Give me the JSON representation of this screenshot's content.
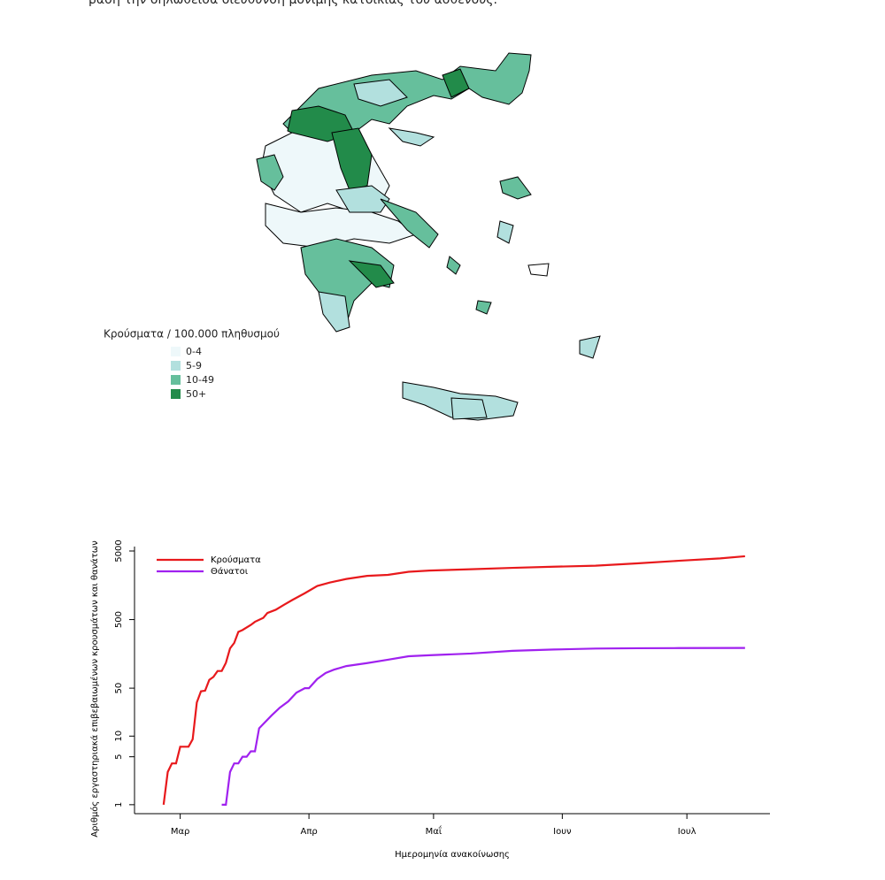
{
  "header": {
    "text": "βάση την δηλωθείσα διεύθυνση μόνιμης κατοικίας του ασθενούς."
  },
  "map": {
    "legend": {
      "title": "Κρούσματα / 100.000 πληθυσμού",
      "items": [
        {
          "label": "0-4",
          "color": "#eef8fa"
        },
        {
          "label": "5-9",
          "color": "#b2e0de"
        },
        {
          "label": "10-49",
          "color": "#66bf9c"
        },
        {
          "label": "50+",
          "color": "#228b4a"
        }
      ]
    }
  },
  "chart_data": {
    "type": "line",
    "ylabel": "Αριθμός εργαστηριακά επιβεβαιωμένων κρουσμάτων και θανάτων",
    "xlabel": "Ημερομηνία ανακοίνωσης",
    "log_y": true,
    "legend": "top-left",
    "xlim": [
      -11,
      142
    ],
    "ylim": [
      0.74,
      5800
    ],
    "xticks": [
      {
        "value": 0,
        "label": "Μαρ"
      },
      {
        "value": 31,
        "label": "Απρ"
      },
      {
        "value": 61,
        "label": "Μαΐ"
      },
      {
        "value": 92,
        "label": "Ιουν"
      },
      {
        "value": 122,
        "label": "Ιουλ"
      }
    ],
    "yticks": [
      1,
      5,
      10,
      50,
      500,
      5000
    ],
    "series": [
      {
        "name": "Κρούσματα",
        "color": "#e8191c",
        "x": [
          -4,
          -3,
          -2,
          -1,
          0,
          1,
          2,
          3,
          4,
          5,
          6,
          7,
          8,
          9,
          10,
          11,
          12,
          13,
          14,
          15,
          17,
          18,
          20,
          21,
          23,
          25,
          27,
          30,
          33,
          36,
          40,
          45,
          50,
          55,
          60,
          70,
          80,
          90,
          100,
          110,
          120,
          130,
          136
        ],
        "values": [
          1,
          3,
          4,
          4,
          7,
          7,
          7,
          9,
          31,
          45,
          46,
          66,
          73,
          89,
          89,
          117,
          190,
          228,
          331,
          352,
          418,
          464,
          530,
          624,
          695,
          821,
          966,
          1212,
          1544,
          1735,
          1955,
          2170,
          2245,
          2490,
          2590,
          2710,
          2840,
          2950,
          3050,
          3300,
          3600,
          3900,
          4190
        ]
      },
      {
        "name": "Θάνατοι",
        "color": "#a021ef",
        "x": [
          10,
          11,
          12,
          13,
          14,
          15,
          16,
          17,
          18,
          19,
          20,
          22,
          24,
          26,
          28,
          30,
          31,
          33,
          35,
          37,
          40,
          45,
          50,
          55,
          60,
          70,
          80,
          90,
          100,
          110,
          120,
          136
        ],
        "values": [
          1,
          1,
          3,
          4,
          4,
          5,
          5,
          6,
          6,
          13,
          15,
          20,
          26,
          32,
          43,
          50,
          50,
          68,
          83,
          93,
          105,
          116,
          130,
          146,
          151,
          160,
          175,
          183,
          189,
          191,
          192,
          193
        ]
      }
    ]
  }
}
